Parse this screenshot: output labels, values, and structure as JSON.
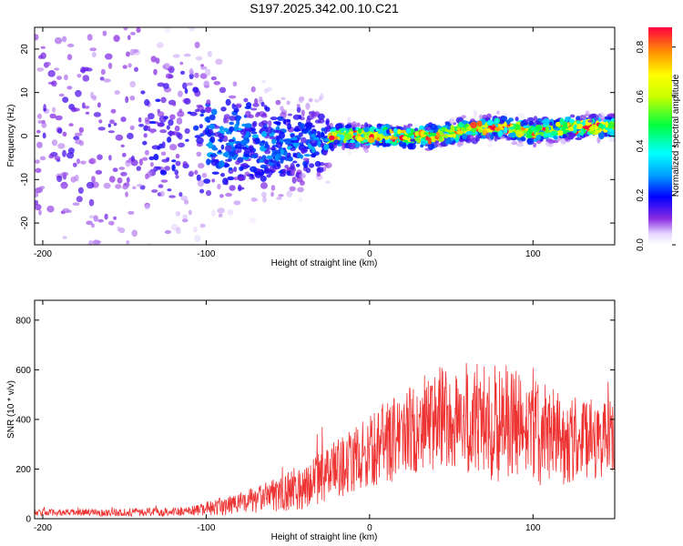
{
  "chart_data": [
    {
      "type": "heatmap",
      "title": "S197.2025.342.00.10.C21",
      "xlabel": "Height of straight line (km)",
      "ylabel": "Frequency (Hz)",
      "xlim": [
        -205,
        150
      ],
      "ylim": [
        -25,
        25
      ],
      "xticks": [
        -200,
        -100,
        0,
        100
      ],
      "yticks": [
        -20,
        -10,
        0,
        10,
        20
      ],
      "ridge": {
        "x": [
          -130,
          -110,
          -90,
          -70,
          -50,
          -30,
          -20,
          0,
          20,
          40,
          60,
          80,
          100,
          120,
          150
        ],
        "center_hz": [
          0,
          1,
          -1,
          -1.5,
          -2,
          -1.5,
          0,
          0,
          0,
          0,
          1.5,
          2,
          1,
          2,
          2
        ]
      },
      "colorbar": {
        "label": "Normalized spectral amplitude",
        "range": [
          0,
          0.88
        ],
        "ticks": [
          "0.0",
          "0.2",
          "0.4",
          "0.6",
          "0.8"
        ]
      }
    },
    {
      "type": "line",
      "xlabel": "Height of straight line (km)",
      "ylabel": "SNR (10 * v/v)",
      "xlim": [
        -205,
        150
      ],
      "ylim": [
        0,
        880
      ],
      "xticks": [
        -200,
        -100,
        0,
        100
      ],
      "yticks": [
        0,
        200,
        400,
        600,
        800
      ],
      "color": "#ee3333",
      "envelope": {
        "x": [
          -205,
          -150,
          -110,
          -80,
          -60,
          -40,
          -20,
          0,
          20,
          40,
          60,
          80,
          100,
          120,
          150
        ],
        "mean": [
          25,
          25,
          30,
          60,
          90,
          130,
          200,
          270,
          340,
          400,
          400,
          390,
          350,
          320,
          320
        ],
        "amp": [
          10,
          12,
          15,
          35,
          50,
          70,
          90,
          110,
          140,
          160,
          180,
          190,
          170,
          140,
          120
        ]
      }
    }
  ]
}
